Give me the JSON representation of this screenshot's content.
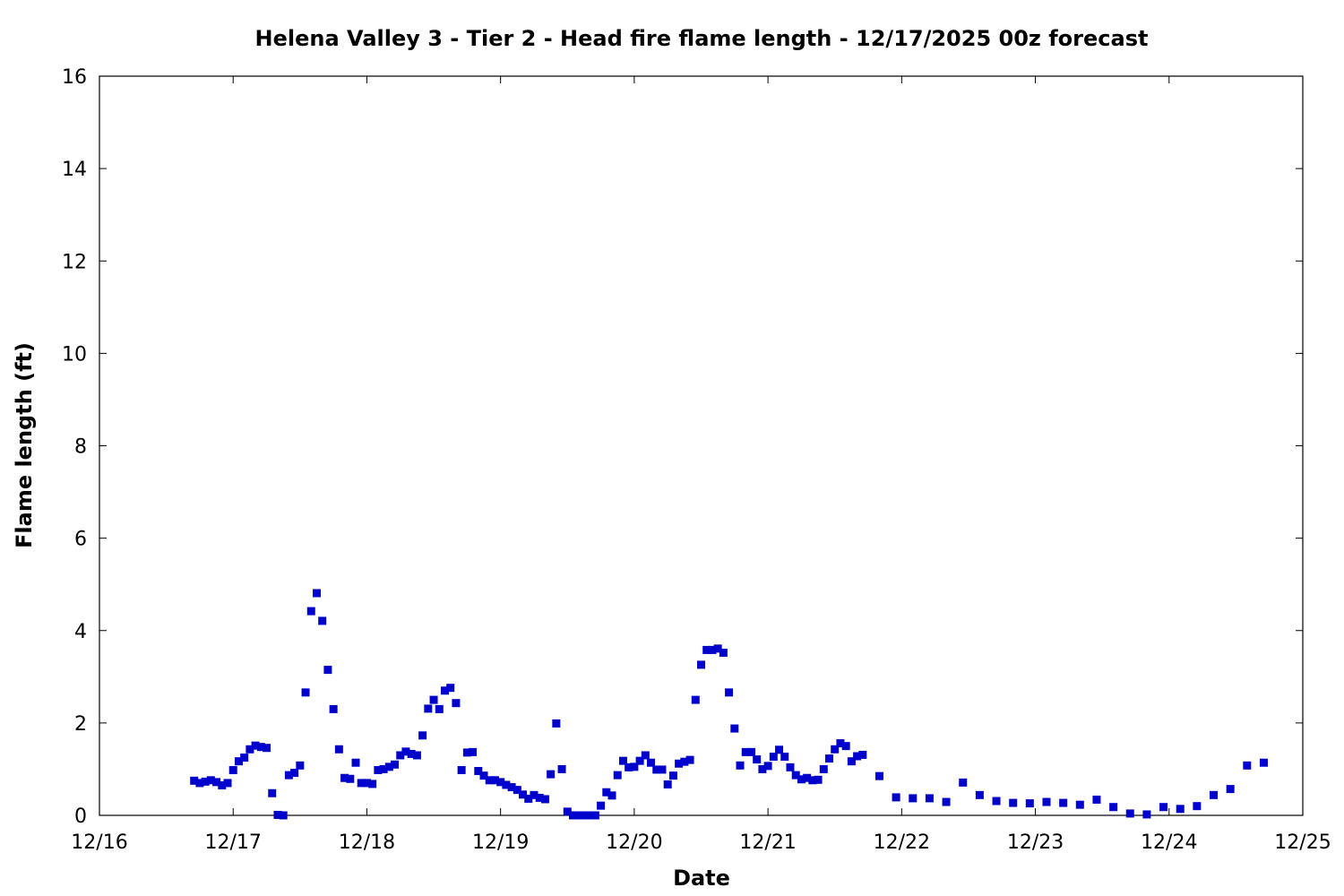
{
  "chart_data": {
    "type": "scatter",
    "title": "Helena Valley 3 - Tier 2 - Head fire flame length - 12/17/2025 00z forecast",
    "xlabel": "Date",
    "ylabel": "Flame length (ft)",
    "xlim": [
      "12/16 00:00",
      "12/25 00:00"
    ],
    "ylim": [
      0,
      16
    ],
    "x_ticks": [
      "12/16",
      "12/17",
      "12/18",
      "12/19",
      "12/20",
      "12/21",
      "12/22",
      "12/23",
      "12/24",
      "12/25"
    ],
    "y_ticks": [
      "0",
      "2",
      "4",
      "6",
      "8",
      "10",
      "12",
      "14",
      "16"
    ],
    "grid": false,
    "legend": "none",
    "marker_color": "#0000cc",
    "series": [
      {
        "points": [
          [
            "12/16 17:00",
            0.75
          ],
          [
            "12/16 18:00",
            0.7
          ],
          [
            "12/16 19:00",
            0.73
          ],
          [
            "12/16 20:00",
            0.76
          ],
          [
            "12/16 21:00",
            0.72
          ],
          [
            "12/16 22:00",
            0.65
          ],
          [
            "12/16 23:00",
            0.7
          ],
          [
            "12/17 00:00",
            0.98
          ],
          [
            "12/17 01:00",
            1.17
          ],
          [
            "12/17 02:00",
            1.25
          ],
          [
            "12/17 03:00",
            1.43
          ],
          [
            "12/17 04:00",
            1.51
          ],
          [
            "12/17 05:00",
            1.48
          ],
          [
            "12/17 06:00",
            1.46
          ],
          [
            "12/17 07:00",
            0.48
          ],
          [
            "12/17 08:00",
            0.01
          ],
          [
            "12/17 09:00",
            0.0
          ],
          [
            "12/17 10:00",
            0.87
          ],
          [
            "12/17 11:00",
            0.92
          ],
          [
            "12/17 12:00",
            1.08
          ],
          [
            "12/17 13:00",
            2.66
          ],
          [
            "12/17 14:00",
            4.42
          ],
          [
            "12/17 15:00",
            4.81
          ],
          [
            "12/17 16:00",
            4.21
          ],
          [
            "12/17 17:00",
            3.15
          ],
          [
            "12/17 18:00",
            2.3
          ],
          [
            "12/17 19:00",
            1.43
          ],
          [
            "12/17 20:00",
            0.81
          ],
          [
            "12/17 21:00",
            0.79
          ],
          [
            "12/17 22:00",
            1.14
          ],
          [
            "12/17 23:00",
            0.7
          ],
          [
            "12/18 00:00",
            0.7
          ],
          [
            "12/18 01:00",
            0.68
          ],
          [
            "12/18 02:00",
            0.98
          ],
          [
            "12/18 03:00",
            1.0
          ],
          [
            "12/18 04:00",
            1.05
          ],
          [
            "12/18 05:00",
            1.1
          ],
          [
            "12/18 06:00",
            1.3
          ],
          [
            "12/18 07:00",
            1.38
          ],
          [
            "12/18 08:00",
            1.33
          ],
          [
            "12/18 09:00",
            1.3
          ],
          [
            "12/18 10:00",
            1.73
          ],
          [
            "12/18 11:00",
            2.31
          ],
          [
            "12/18 12:00",
            2.5
          ],
          [
            "12/18 13:00",
            2.3
          ],
          [
            "12/18 14:00",
            2.7
          ],
          [
            "12/18 15:00",
            2.76
          ],
          [
            "12/18 16:00",
            2.43
          ],
          [
            "12/18 17:00",
            0.98
          ],
          [
            "12/18 18:00",
            1.36
          ],
          [
            "12/18 19:00",
            1.37
          ],
          [
            "12/18 20:00",
            0.96
          ],
          [
            "12/18 21:00",
            0.86
          ],
          [
            "12/18 22:00",
            0.76
          ],
          [
            "12/18 23:00",
            0.76
          ],
          [
            "12/19 00:00",
            0.72
          ],
          [
            "12/19 01:00",
            0.66
          ],
          [
            "12/19 02:00",
            0.61
          ],
          [
            "12/19 03:00",
            0.55
          ],
          [
            "12/19 04:00",
            0.45
          ],
          [
            "12/19 05:00",
            0.36
          ],
          [
            "12/19 06:00",
            0.44
          ],
          [
            "12/19 07:00",
            0.38
          ],
          [
            "12/19 08:00",
            0.35
          ],
          [
            "12/19 09:00",
            0.89
          ],
          [
            "12/19 10:00",
            1.99
          ],
          [
            "12/19 11:00",
            1.0
          ],
          [
            "12/19 12:00",
            0.08
          ],
          [
            "12/19 13:00",
            0.0
          ],
          [
            "12/19 14:00",
            0.0
          ],
          [
            "12/19 15:00",
            0.0
          ],
          [
            "12/19 16:00",
            0.0
          ],
          [
            "12/19 17:00",
            0.0
          ],
          [
            "12/19 18:00",
            0.21
          ],
          [
            "12/19 19:00",
            0.5
          ],
          [
            "12/19 20:00",
            0.43
          ],
          [
            "12/19 21:00",
            0.87
          ],
          [
            "12/19 22:00",
            1.18
          ],
          [
            "12/19 23:00",
            1.04
          ],
          [
            "12/20 00:00",
            1.05
          ],
          [
            "12/20 01:00",
            1.18
          ],
          [
            "12/20 02:00",
            1.3
          ],
          [
            "12/20 03:00",
            1.14
          ],
          [
            "12/20 04:00",
            0.99
          ],
          [
            "12/20 05:00",
            0.99
          ],
          [
            "12/20 06:00",
            0.67
          ],
          [
            "12/20 07:00",
            0.86
          ],
          [
            "12/20 08:00",
            1.12
          ],
          [
            "12/20 09:00",
            1.16
          ],
          [
            "12/20 10:00",
            1.2
          ],
          [
            "12/20 11:00",
            2.5
          ],
          [
            "12/20 12:00",
            3.26
          ],
          [
            "12/20 13:00",
            3.58
          ],
          [
            "12/20 14:00",
            3.58
          ],
          [
            "12/20 15:00",
            3.61
          ],
          [
            "12/20 16:00",
            3.52
          ],
          [
            "12/20 17:00",
            2.66
          ],
          [
            "12/20 18:00",
            1.88
          ],
          [
            "12/20 19:00",
            1.08
          ],
          [
            "12/20 20:00",
            1.37
          ],
          [
            "12/20 21:00",
            1.37
          ],
          [
            "12/20 22:00",
            1.21
          ],
          [
            "12/20 23:00",
            1.0
          ],
          [
            "12/21 00:00",
            1.07
          ],
          [
            "12/21 01:00",
            1.27
          ],
          [
            "12/21 02:00",
            1.42
          ],
          [
            "12/21 03:00",
            1.27
          ],
          [
            "12/21 04:00",
            1.04
          ],
          [
            "12/21 05:00",
            0.87
          ],
          [
            "12/21 06:00",
            0.78
          ],
          [
            "12/21 07:00",
            0.81
          ],
          [
            "12/21 08:00",
            0.76
          ],
          [
            "12/21 09:00",
            0.77
          ],
          [
            "12/21 10:00",
            1.0
          ],
          [
            "12/21 11:00",
            1.23
          ],
          [
            "12/21 12:00",
            1.43
          ],
          [
            "12/21 13:00",
            1.56
          ],
          [
            "12/21 14:00",
            1.5
          ],
          [
            "12/21 15:00",
            1.17
          ],
          [
            "12/21 16:00",
            1.28
          ],
          [
            "12/21 17:00",
            1.31
          ],
          [
            "12/21 20:00",
            0.85
          ],
          [
            "12/21 23:00",
            0.39
          ],
          [
            "12/22 02:00",
            0.37
          ],
          [
            "12/22 05:00",
            0.37
          ],
          [
            "12/22 08:00",
            0.29
          ],
          [
            "12/22 11:00",
            0.71
          ],
          [
            "12/22 14:00",
            0.44
          ],
          [
            "12/22 17:00",
            0.31
          ],
          [
            "12/22 20:00",
            0.27
          ],
          [
            "12/22 23:00",
            0.26
          ],
          [
            "12/23 02:00",
            0.29
          ],
          [
            "12/23 05:00",
            0.27
          ],
          [
            "12/23 08:00",
            0.23
          ],
          [
            "12/23 11:00",
            0.34
          ],
          [
            "12/23 14:00",
            0.18
          ],
          [
            "12/23 17:00",
            0.04
          ],
          [
            "12/23 20:00",
            0.02
          ],
          [
            "12/23 23:00",
            0.18
          ],
          [
            "12/24 02:00",
            0.14
          ],
          [
            "12/24 05:00",
            0.2
          ],
          [
            "12/24 08:00",
            0.44
          ],
          [
            "12/24 11:00",
            0.57
          ],
          [
            "12/24 14:00",
            1.08
          ],
          [
            "12/24 17:00",
            1.14
          ]
        ]
      }
    ]
  }
}
